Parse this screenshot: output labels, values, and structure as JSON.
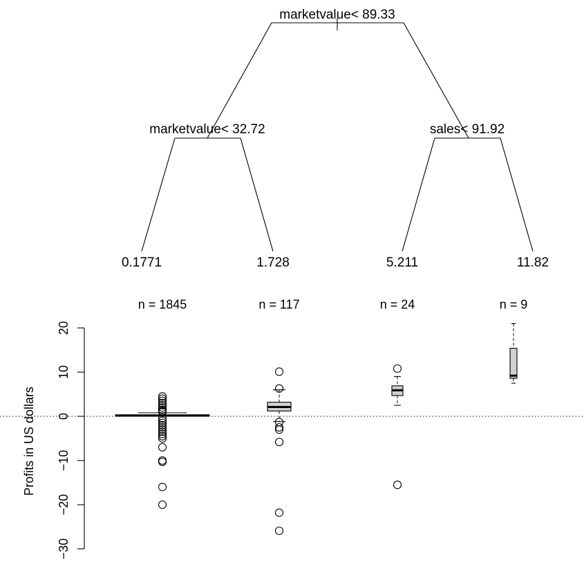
{
  "tree": {
    "root_split": "marketvalue< 89.33",
    "left_split": "marketvalue< 32.72",
    "right_split": "sales< 91.92",
    "leaves": [
      {
        "value": "0.1771",
        "count": "n =  1845"
      },
      {
        "value": "1.728",
        "count": "n =  117"
      },
      {
        "value": "5.211",
        "count": "n =  24"
      },
      {
        "value": "11.82",
        "count": "n =  9"
      }
    ]
  },
  "chart_data": {
    "type": "boxplot",
    "ylabel": "Profits in US dollars",
    "ylim": [
      -30,
      20
    ],
    "yticks": [
      20,
      10,
      0,
      -10,
      -20,
      -30
    ],
    "ytick_labels": [
      "20",
      "10",
      "0",
      "−10",
      "−20",
      "−30"
    ],
    "reference_line": 0,
    "categories": [
      "0.1771",
      "1.728",
      "5.211",
      "11.82"
    ],
    "boxes": [
      {
        "min": 0.0,
        "q1": 0.05,
        "median": 0.15,
        "q3": 0.35,
        "max": 0.8,
        "outliers": [
          4.5,
          4.0,
          3.5,
          3.0,
          2.5,
          2.0,
          1.5,
          1.2,
          1.0,
          -0.5,
          -1.0,
          -1.5,
          -2.0,
          -2.5,
          -3.0,
          -3.5,
          -4.0,
          -4.5,
          -5.0,
          -7.0,
          -10.0,
          -10.3,
          -16.0,
          -20.0
        ]
      },
      {
        "min": -1.2,
        "q1": 1.2,
        "median": 2.1,
        "q3": 3.2,
        "max": 6.0,
        "outliers": [
          10.1,
          6.3,
          -1.3,
          -2.5,
          -3.0,
          -5.8,
          -21.8,
          -25.9
        ]
      },
      {
        "min": 2.5,
        "q1": 4.7,
        "median": 5.9,
        "q3": 6.9,
        "max": 9.0,
        "outliers": [
          10.8,
          -15.5
        ]
      },
      {
        "min": 7.5,
        "q1": 8.6,
        "median": 9.2,
        "q3": 15.4,
        "max": 21.0,
        "outliers": []
      }
    ]
  }
}
